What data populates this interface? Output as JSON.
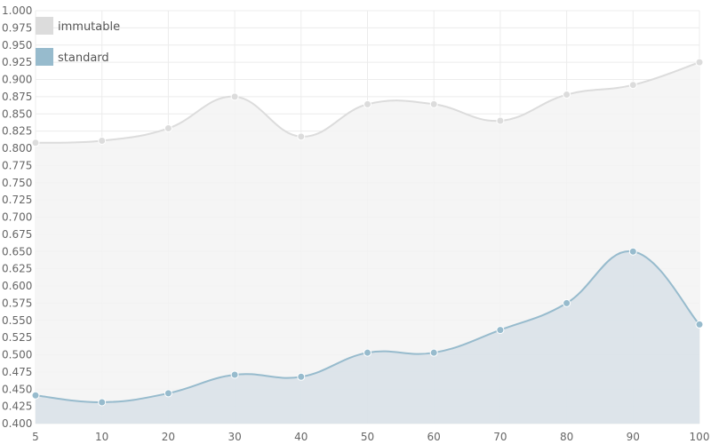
{
  "chart_data": {
    "type": "area",
    "x": [
      5,
      10,
      20,
      30,
      40,
      50,
      60,
      70,
      80,
      90,
      100
    ],
    "xticks": [
      "5",
      "10",
      "20",
      "30",
      "40",
      "50",
      "60",
      "70",
      "80",
      "90",
      "100"
    ],
    "ylim": [
      0.4,
      1.0
    ],
    "yticks": [
      "0.400",
      "0.425",
      "0.450",
      "0.475",
      "0.500",
      "0.525",
      "0.550",
      "0.575",
      "0.600",
      "0.625",
      "0.650",
      "0.675",
      "0.700",
      "0.725",
      "0.750",
      "0.775",
      "0.800",
      "0.825",
      "0.850",
      "0.875",
      "0.900",
      "0.925",
      "0.950",
      "0.975",
      "1.000"
    ],
    "grid": true,
    "legend_position": "top-left",
    "series": [
      {
        "name": "immutable",
        "color": "#dcdcdc",
        "fill": "#f3f3f3",
        "values": [
          0.808,
          0.811,
          0.829,
          0.875,
          0.817,
          0.864,
          0.864,
          0.84,
          0.878,
          0.892,
          0.925
        ]
      },
      {
        "name": "standard",
        "color": "#97bbcd",
        "fill": "#d8e0e8",
        "values": [
          0.441,
          0.431,
          0.444,
          0.471,
          0.468,
          0.503,
          0.503,
          0.536,
          0.575,
          0.65,
          0.544
        ]
      }
    ]
  }
}
